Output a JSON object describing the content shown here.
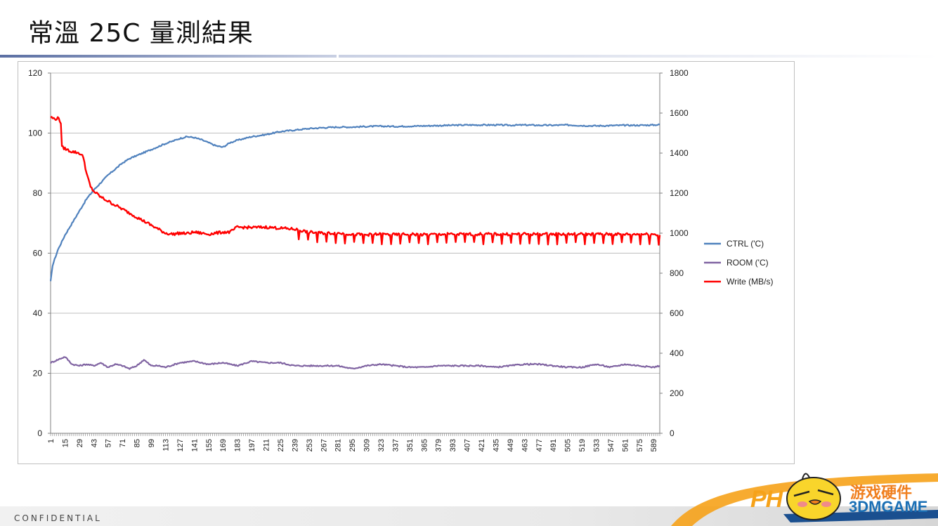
{
  "slide": {
    "title": "常溫 25C 量測結果",
    "footer": "CONFIDENTIAL"
  },
  "watermark": {
    "brand_text": "PH",
    "cn_text": "游戏硬件",
    "en_text": "3DMGAME"
  },
  "colors": {
    "ctrl": "#4f81bd",
    "room": "#8064a2",
    "write": "#ff0000",
    "grid": "#bfbfbf",
    "accent_rule": "#7f8fb5"
  },
  "chart_data": {
    "type": "line",
    "y_left": {
      "min": 0,
      "max": 120,
      "ticks": [
        0,
        20,
        40,
        60,
        80,
        100,
        120
      ]
    },
    "y_right": {
      "min": 0,
      "max": 1800,
      "ticks": [
        0,
        200,
        400,
        600,
        800,
        1000,
        1200,
        1400,
        1600,
        1800
      ]
    },
    "x": {
      "min": 1,
      "max": 595,
      "tick_labels": [
        "1",
        "15",
        "29",
        "43",
        "57",
        "71",
        "85",
        "99",
        "113",
        "127",
        "141",
        "155",
        "169",
        "183",
        "197",
        "211",
        "225",
        "239",
        "253",
        "267",
        "281",
        "295",
        "309",
        "323",
        "337",
        "351",
        "365",
        "379",
        "393",
        "407",
        "421",
        "435",
        "449",
        "463",
        "477",
        "491",
        "505",
        "519",
        "533",
        "547",
        "561",
        "575",
        "589"
      ]
    },
    "legend_position": "right",
    "series": [
      {
        "name": "CTRL ('C)",
        "axis": "left",
        "x": [
          1,
          3,
          8,
          15,
          22,
          29,
          36,
          43,
          50,
          57,
          64,
          71,
          78,
          85,
          92,
          99,
          106,
          113,
          120,
          127,
          134,
          141,
          148,
          155,
          162,
          169,
          176,
          183,
          197,
          211,
          225,
          239,
          253,
          267,
          281,
          295,
          309,
          323,
          337,
          351,
          365,
          379,
          393,
          407,
          421,
          435,
          449,
          463,
          477,
          491,
          505,
          519,
          533,
          547,
          561,
          575,
          589,
          595
        ],
        "y": [
          50.5,
          56,
          61,
          66,
          70,
          74,
          78,
          81,
          83.5,
          86,
          88,
          90,
          91.5,
          92.5,
          93.5,
          94.5,
          95.5,
          96.5,
          97.3,
          98.2,
          98.8,
          98.5,
          97.8,
          96.8,
          95.8,
          95.3,
          96.8,
          97.6,
          98.8,
          99.5,
          100.5,
          101,
          101.5,
          101.8,
          102,
          102,
          102.2,
          102.3,
          102.2,
          102.3,
          102.4,
          102.5,
          102.6,
          102.7,
          102.7,
          102.7,
          102.6,
          102.7,
          102.6,
          102.6,
          102.7,
          102.5,
          102.4,
          102.5,
          102.6,
          102.6,
          102.7,
          102.8
        ]
      },
      {
        "name": "ROOM ('C)",
        "axis": "left",
        "x": [
          1,
          8,
          15,
          22,
          29,
          36,
          43,
          50,
          57,
          64,
          71,
          78,
          85,
          92,
          99,
          106,
          113,
          127,
          141,
          155,
          169,
          183,
          197,
          211,
          225,
          239,
          253,
          267,
          281,
          295,
          309,
          323,
          337,
          351,
          365,
          379,
          393,
          407,
          421,
          435,
          449,
          463,
          477,
          491,
          505,
          519,
          533,
          547,
          561,
          575,
          589,
          595
        ],
        "y": [
          23.5,
          24.5,
          25.5,
          23,
          22.5,
          23,
          22.5,
          23.5,
          22,
          23,
          22.5,
          21.5,
          22.5,
          24.5,
          22.5,
          22.5,
          22,
          23.5,
          24,
          23,
          23.5,
          22.5,
          24,
          23.5,
          23.5,
          22.5,
          22.5,
          22.5,
          22.5,
          21.5,
          22.5,
          23,
          22.5,
          22,
          22,
          22.5,
          22.5,
          22.5,
          22.5,
          22,
          22.5,
          23,
          23,
          22.5,
          22,
          22,
          23,
          22,
          23,
          22.5,
          22,
          22.5
        ]
      },
      {
        "name": "Write (MB/s)",
        "axis": "right",
        "x": [
          1,
          5,
          9,
          11,
          12,
          20,
          29,
          33,
          36,
          40,
          43,
          50,
          57,
          64,
          71,
          78,
          85,
          92,
          99,
          106,
          113,
          120,
          127,
          134,
          141,
          148,
          155,
          162,
          169,
          176,
          183,
          197,
          211,
          225,
          239,
          253,
          267,
          281,
          295,
          309,
          323,
          337,
          351,
          365,
          379,
          393,
          407,
          421,
          435,
          449,
          463,
          477,
          491,
          505,
          519,
          533,
          547,
          561,
          575,
          589,
          595
        ],
        "y": [
          1580,
          1570,
          1575,
          1550,
          1430,
          1410,
          1400,
          1380,
          1300,
          1230,
          1210,
          1180,
          1160,
          1140,
          1120,
          1100,
          1080,
          1060,
          1040,
          1020,
          1000,
          995,
          1000,
          998,
          1005,
          1000,
          995,
          1000,
          1005,
          1005,
          1030,
          1028,
          1030,
          1025,
          1020,
          1005,
          1000,
          1000,
          995,
          992,
          995,
          992,
          995,
          992,
          995,
          995,
          995,
          995,
          995,
          995,
          995,
          995,
          995,
          995,
          995,
          995,
          995,
          995,
          995,
          995,
          990
        ]
      }
    ]
  }
}
